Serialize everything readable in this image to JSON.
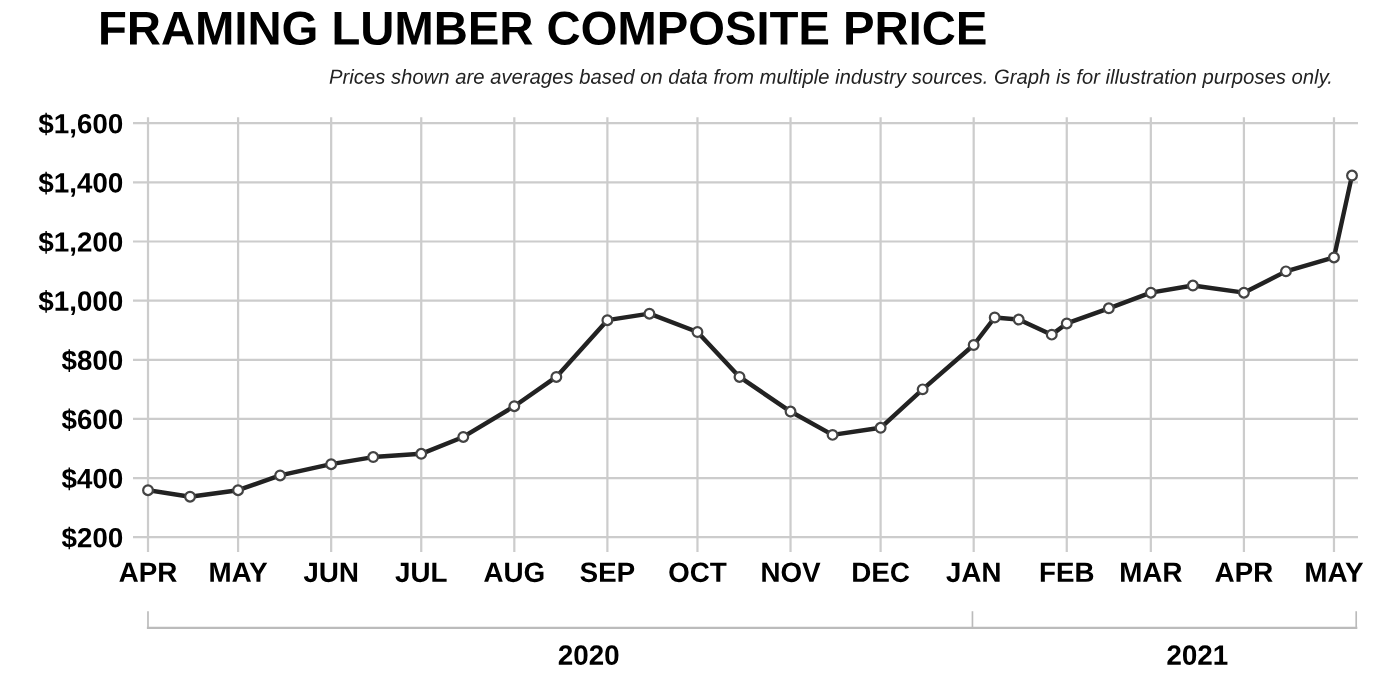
{
  "chart_data": {
    "type": "line",
    "title": "FRAMING LUMBER COMPOSITE PRICE",
    "subtitle": "Prices shown are averages based on data from multiple industry sources. Graph is for illustration purposes only.",
    "x": [
      "2020-04-01",
      "2020-04-15",
      "2020-05-01",
      "2020-05-15",
      "2020-06-01",
      "2020-06-15",
      "2020-07-01",
      "2020-07-15",
      "2020-08-01",
      "2020-08-15",
      "2020-09-01",
      "2020-09-15",
      "2020-10-01",
      "2020-10-15",
      "2020-11-01",
      "2020-11-15",
      "2020-12-01",
      "2020-12-15",
      "2021-01-01",
      "2021-01-08",
      "2021-01-16",
      "2021-01-27",
      "2021-02-01",
      "2021-02-15",
      "2021-03-01",
      "2021-03-15",
      "2021-04-01",
      "2021-04-15",
      "2021-05-01",
      "2021-05-07"
    ],
    "series": [
      {
        "color": "#222222",
        "values": [
          359,
          337,
          359,
          409,
          447,
          471,
          482,
          539,
          643,
          742,
          934,
          956,
          894,
          742,
          625,
          546,
          570,
          700,
          850,
          943,
          936,
          885,
          923,
          974,
          1027,
          1051,
          1027,
          1099,
          1146,
          1423
        ]
      }
    ],
    "marker": "circle",
    "line_style": "solid",
    "grid": true,
    "legend": false,
    "xlim": [
      "2020-03-27",
      "2021-05-09"
    ],
    "xticks": [
      {
        "value": "2020-04-01",
        "label": "APR"
      },
      {
        "value": "2020-05-01",
        "label": "MAY"
      },
      {
        "value": "2020-06-01",
        "label": "JUN"
      },
      {
        "value": "2020-07-01",
        "label": "JUL"
      },
      {
        "value": "2020-08-01",
        "label": "AUG"
      },
      {
        "value": "2020-09-01",
        "label": "SEP"
      },
      {
        "value": "2020-10-01",
        "label": "OCT"
      },
      {
        "value": "2020-11-01",
        "label": "NOV"
      },
      {
        "value": "2020-12-01",
        "label": "DEC"
      },
      {
        "value": "2021-01-01",
        "label": "JAN"
      },
      {
        "value": "2021-02-01",
        "label": "FEB"
      },
      {
        "value": "2021-03-01",
        "label": "MAR"
      },
      {
        "value": "2021-04-01",
        "label": "APR"
      },
      {
        "value": "2021-05-01",
        "label": "MAY"
      }
    ],
    "x2lim": [
      "2020-03-27",
      "2021-05-11"
    ],
    "x2ticks": [
      {
        "value": "2020-04-01",
        "label": null
      },
      {
        "value": "2020-08-26",
        "label": "2020"
      },
      {
        "value": "2021-01-01",
        "label": null
      },
      {
        "value": "2021-03-17",
        "label": "2021"
      },
      {
        "value": "2021-05-09",
        "label": null
      }
    ],
    "ylim": [
      150,
      1620
    ],
    "yticks": [
      {
        "value": 200,
        "label": "$200"
      },
      {
        "value": 400,
        "label": "$400"
      },
      {
        "value": 600,
        "label": "$600"
      },
      {
        "value": 800,
        "label": "$800"
      },
      {
        "value": 1000,
        "label": "$1,000"
      },
      {
        "value": 1200,
        "label": "$1,200"
      },
      {
        "value": 1400,
        "label": "$1,400"
      },
      {
        "value": 1600,
        "label": "$1,600"
      }
    ]
  }
}
